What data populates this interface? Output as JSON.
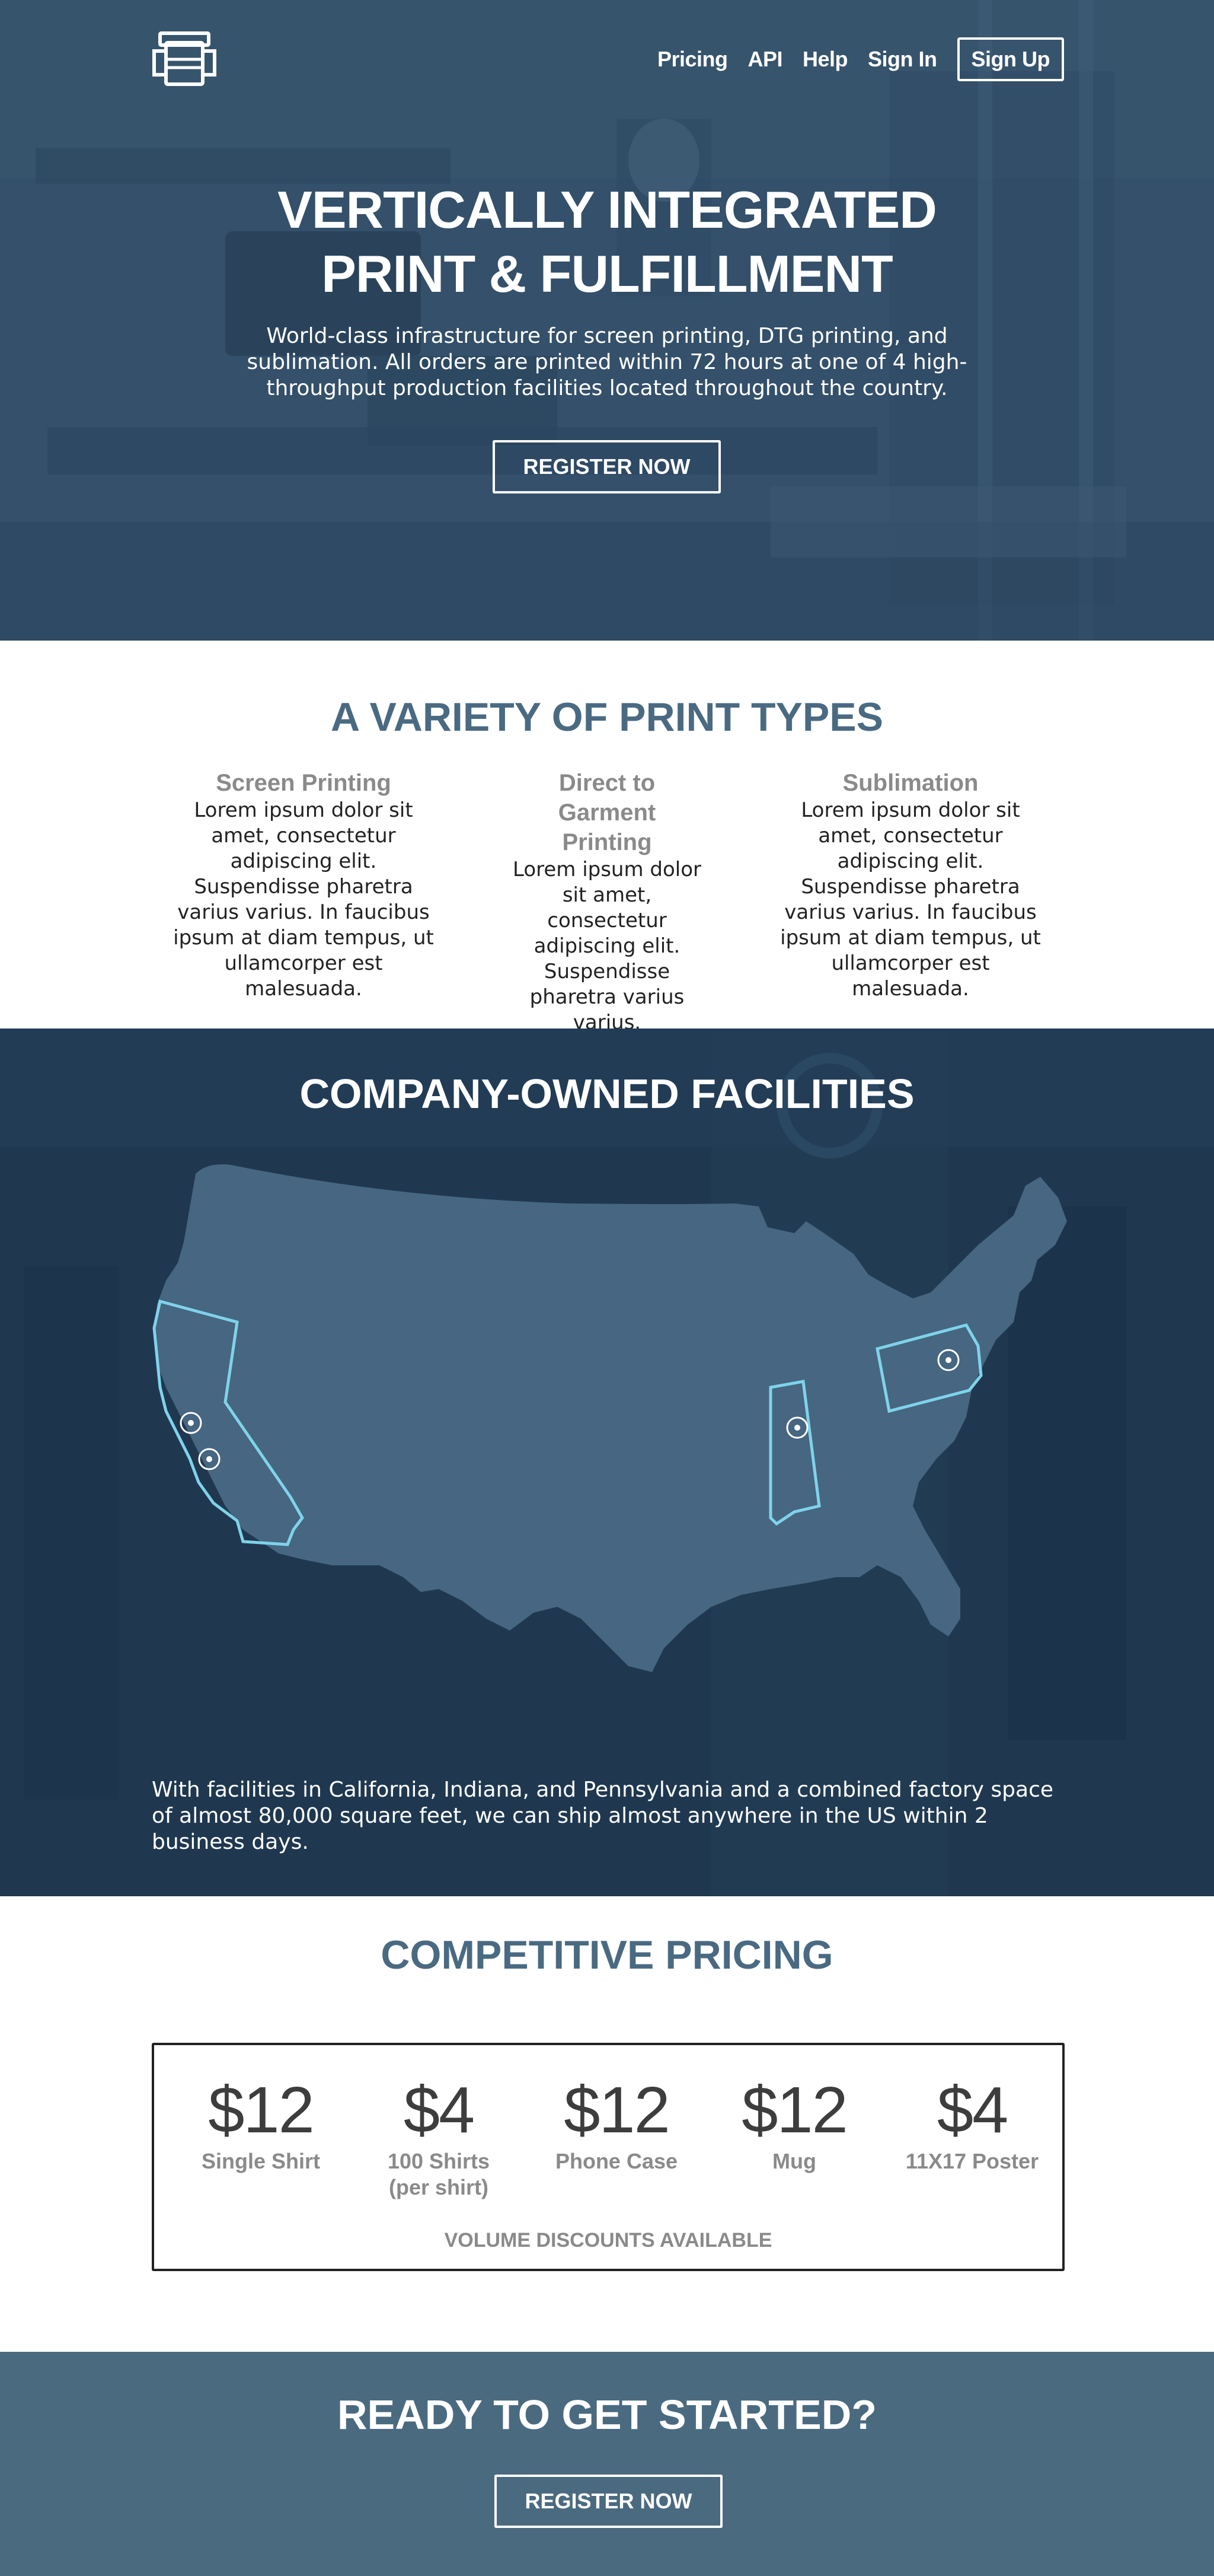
{
  "nav": {
    "links": [
      "Pricing",
      "API",
      "Help",
      "Sign In"
    ],
    "signup": "Sign Up"
  },
  "hero": {
    "title_line1": "VERTICALLY INTEGRATED",
    "title_line2": "PRINT & FULFILLMENT",
    "subtitle": "World-class infrastructure for screen printing, DTG printing, and sublimation. All orders are printed within 72 hours at one of 4 high-throughput production facilities located throughout the country.",
    "cta": "REGISTER NOW"
  },
  "print_types": {
    "title": "A VARIETY OF PRINT TYPES",
    "items": [
      {
        "name": "Screen Printing",
        "text": "Lorem ipsum dolor sit amet, consectetur adipiscing elit. Suspendisse pharetra varius varius. In faucibus ipsum at diam tempus, ut ullamcorper est malesuada."
      },
      {
        "name": "Direct to Garment Printing",
        "text": "Lorem ipsum dolor sit amet, consectetur adipiscing elit. Suspendisse pharetra varius varius."
      },
      {
        "name": "Sublimation",
        "text": "Lorem ipsum dolor sit amet, consectetur adipiscing elit. Suspendisse pharetra varius varius. In faucibus ipsum at diam tempus, ut ullamcorper est malesuada."
      }
    ]
  },
  "facilities": {
    "title": "COMPANY-OWNED FACILITIES",
    "text": "With facilities in California, Indiana, and Pennsylvania and a combined factory space of almost 80,000 square feet, we can ship almost anywhere in the US within 2 business days.",
    "highlight_color": "#7fd3ea"
  },
  "pricing": {
    "title": "COMPETITIVE PRICING",
    "items": [
      {
        "price": "$12",
        "label": "Single Shirt"
      },
      {
        "price": "$4",
        "label": "100 Shirts (per shirt)"
      },
      {
        "price": "$12",
        "label": "Phone Case"
      },
      {
        "price": "$12",
        "label": "Mug"
      },
      {
        "price": "$4",
        "label": "11X17 Poster"
      }
    ],
    "note": "VOLUME DISCOUNTS AVAILABLE"
  },
  "cta": {
    "title": "READY TO GET STARTED?",
    "button": "REGISTER NOW"
  }
}
